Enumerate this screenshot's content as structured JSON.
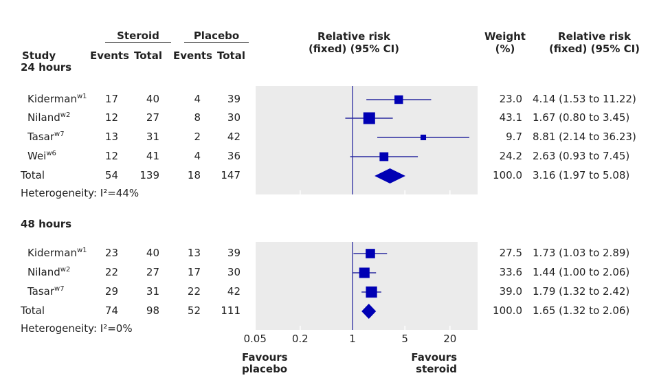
{
  "headers": {
    "study": "Study",
    "steroid": "Steroid",
    "placebo": "Placebo",
    "events": "Events",
    "total": "Total",
    "rr_plot": [
      "Relative risk",
      "(fixed) (95% CI)"
    ],
    "weight": [
      "Weight",
      "(%)"
    ],
    "rr_text": [
      "Relative risk",
      "(fixed) (95% CI)"
    ]
  },
  "favours_left": [
    "Favours",
    "placebo"
  ],
  "favours_right": [
    "Favours",
    "steroid"
  ],
  "colors": {
    "marker": "#0000b4",
    "panel": "#ebebeb",
    "line": "#2a2aa0"
  },
  "chart_data": {
    "type": "forest",
    "x_scale": "log",
    "xlim": [
      0.05,
      47
    ],
    "reference_line": 1,
    "x_ticks": [
      "0.05",
      "0.2",
      "1",
      "5",
      "20"
    ],
    "groups": [
      {
        "title": "24 hours",
        "heterogeneity": "Heterogeneity: I²=44%",
        "studies": [
          {
            "name": "Kiderman",
            "ref": "w1",
            "s_events": "17",
            "s_total": "40",
            "p_events": "4",
            "p_total": "39",
            "weight": "23.0",
            "rr": 4.14,
            "lo": 1.53,
            "hi": 11.22,
            "ci_text": "4.14 (1.53 to 11.22)"
          },
          {
            "name": "Niland",
            "ref": "w2",
            "s_events": "12",
            "s_total": "27",
            "p_events": "8",
            "p_total": "30",
            "weight": "43.1",
            "rr": 1.67,
            "lo": 0.8,
            "hi": 3.45,
            "ci_text": "1.67 (0.80 to 3.45)"
          },
          {
            "name": "Tasar",
            "ref": "w7",
            "s_events": "13",
            "s_total": "31",
            "p_events": "2",
            "p_total": "42",
            "weight": "9.7",
            "rr": 8.81,
            "lo": 2.14,
            "hi": 36.23,
            "ci_text": "8.81 (2.14 to 36.23)"
          },
          {
            "name": "Wei",
            "ref": "w6",
            "s_events": "12",
            "s_total": "41",
            "p_events": "4",
            "p_total": "36",
            "weight": "24.2",
            "rr": 2.63,
            "lo": 0.93,
            "hi": 7.45,
            "ci_text": "2.63 (0.93 to 7.45)"
          }
        ],
        "total": {
          "name": "Total",
          "s_events": "54",
          "s_total": "139",
          "p_events": "18",
          "p_total": "147",
          "weight": "100.0",
          "rr": 3.16,
          "lo": 1.97,
          "hi": 5.08,
          "ci_text": "3.16 (1.97 to 5.08)"
        }
      },
      {
        "title": "48 hours",
        "heterogeneity": "Heterogeneity: I²=0%",
        "studies": [
          {
            "name": "Kiderman",
            "ref": "w1",
            "s_events": "23",
            "s_total": "40",
            "p_events": "13",
            "p_total": "39",
            "weight": "27.5",
            "rr": 1.73,
            "lo": 1.03,
            "hi": 2.89,
            "ci_text": "1.73 (1.03 to 2.89)"
          },
          {
            "name": "Niland",
            "ref": "w2",
            "s_events": "22",
            "s_total": "27",
            "p_events": "17",
            "p_total": "30",
            "weight": "33.6",
            "rr": 1.44,
            "lo": 1.0,
            "hi": 2.06,
            "ci_text": "1.44 (1.00 to 2.06)"
          },
          {
            "name": "Tasar",
            "ref": "w7",
            "s_events": "29",
            "s_total": "31",
            "p_events": "22",
            "p_total": "42",
            "weight": "39.0",
            "rr": 1.79,
            "lo": 1.32,
            "hi": 2.42,
            "ci_text": "1.79 (1.32 to 2.42)"
          }
        ],
        "total": {
          "name": "Total",
          "s_events": "74",
          "s_total": "98",
          "p_events": "52",
          "p_total": "111",
          "weight": "100.0",
          "rr": 1.65,
          "lo": 1.32,
          "hi": 2.06,
          "ci_text": "1.65 (1.32 to 2.06)"
        }
      }
    ]
  }
}
